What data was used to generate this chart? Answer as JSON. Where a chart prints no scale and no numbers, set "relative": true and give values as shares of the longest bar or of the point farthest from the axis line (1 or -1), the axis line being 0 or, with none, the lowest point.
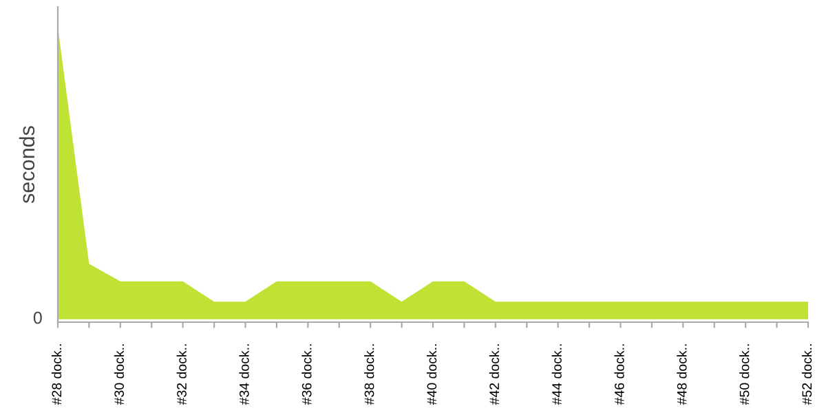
{
  "chart_data": {
    "type": "area",
    "ylabel": "seconds",
    "relative": true,
    "annotations": [
      "0"
    ],
    "categories": [
      "#28 dock..",
      null,
      "#30 dock..",
      null,
      "#32 dock..",
      null,
      "#34 dock..",
      null,
      "#36 dock..",
      null,
      "#38 dock..",
      null,
      "#40 dock..",
      null,
      "#42 dock..",
      null,
      "#44 dock..",
      null,
      "#46 dock..",
      null,
      "#48 dock..",
      null,
      "#50 dock..",
      null,
      "#52 dock.."
    ],
    "series": [
      {
        "color": "#bfe234",
        "values": [
          1,
          0.19,
          0.13,
          0.13,
          0.13,
          0.06,
          0.06,
          0.13,
          0.13,
          0.13,
          0.13,
          0.06,
          0.13,
          0.13,
          0.06,
          0.06,
          0.06,
          0.06,
          0.06,
          0.06,
          0.06,
          0.06,
          0.06,
          0.06,
          0.06
        ]
      }
    ],
    "grid": false,
    "legend": false
  }
}
